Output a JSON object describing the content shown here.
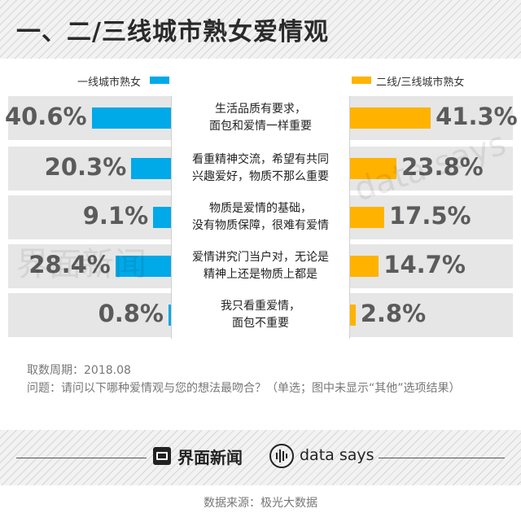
{
  "title": "一、二/三线城市熟女爱情观",
  "chart_data": {
    "type": "bar",
    "series": [
      {
        "name": "一线城市熟女",
        "values": [
          40.6,
          20.3,
          9.1,
          28.4,
          0.8
        ],
        "labels": [
          "40.6%",
          "20.3%",
          "9.1%",
          "28.4%",
          "0.8%"
        ]
      },
      {
        "name": "二线/三线城市熟女",
        "values": [
          41.3,
          23.8,
          17.5,
          14.7,
          2.8
        ],
        "labels": [
          "41.3%",
          "23.8%",
          "17.5%",
          "14.7%",
          "2.8%"
        ]
      }
    ],
    "categories": [
      "生活品质有要求，\n面包和爱情一样重要",
      "看重精神交流，希望有共同\n兴趣爱好，物质不那么重要",
      "物质是爱情的基础，\n没有物质保障，很难有爱情",
      "爱情讲究门当户对，无论是\n精神上还是物质上都是",
      "我只看重爱情，\n面包不重要"
    ],
    "unit": "%"
  },
  "notes": {
    "period": "取数周期：2018.08",
    "question": "问题：请问以下哪种爱情观与您的想法最吻合？（单选；图中未显示“其他”选项结果）"
  },
  "footer": {
    "brand_jm": "界面新闻",
    "brand_ds": "data says",
    "source": "数据来源：极光大数据"
  },
  "watermark": {
    "left": "界面新闻",
    "right": "data says"
  },
  "colors": {
    "primary_series": "#00a9e8",
    "secondary_series": "#ffb300",
    "value_text": "#5b5b5b",
    "row_background": "#e6e6e6"
  }
}
